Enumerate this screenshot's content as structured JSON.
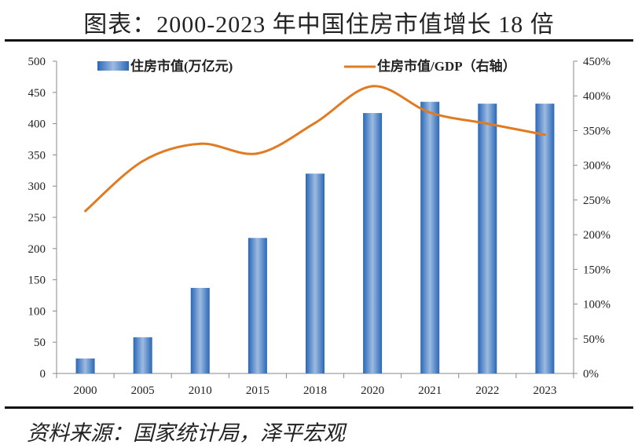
{
  "title": "图表：2000-2023 年中国住房市值增长 18 倍",
  "source": "资料来源：国家统计局，泽平宏观",
  "chart_data": {
    "type": "bar+line",
    "categories": [
      "2000",
      "2005",
      "2010",
      "2015",
      "2018",
      "2020",
      "2021",
      "2022",
      "2023"
    ],
    "series": [
      {
        "name": "住房市值(万亿元)",
        "type": "bar",
        "axis": "left",
        "color": "#3a78c2",
        "values": [
          24,
          58,
          137,
          217,
          320,
          417,
          435,
          432,
          432
        ]
      },
      {
        "name": "住房市值/GDP（右轴）",
        "type": "line",
        "axis": "right",
        "color": "#e07b22",
        "values": [
          234,
          306,
          331,
          317,
          361,
          414,
          376,
          360,
          344
        ]
      }
    ],
    "left_axis": {
      "min": 0,
      "max": 500,
      "ticks": [
        "0",
        "50",
        "100",
        "150",
        "200",
        "250",
        "300",
        "350",
        "400",
        "450",
        "500"
      ]
    },
    "right_axis": {
      "min": 0,
      "max": 450,
      "ticks": [
        "0%",
        "50%",
        "100%",
        "150%",
        "200%",
        "250%",
        "300%",
        "350%",
        "400%",
        "450%"
      ]
    },
    "legend_placement": "top",
    "grid": false
  }
}
